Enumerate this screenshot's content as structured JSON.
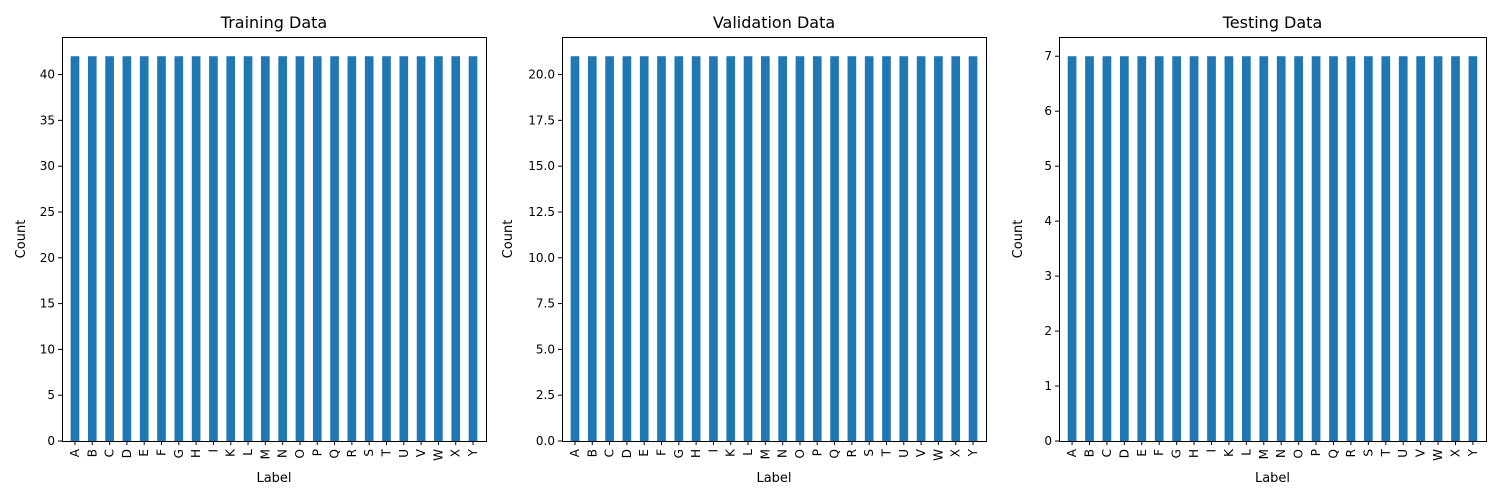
{
  "chart_data": [
    {
      "type": "bar",
      "title": "Training Data",
      "xlabel": "Label",
      "ylabel": "Count",
      "categories": [
        "A",
        "B",
        "C",
        "D",
        "E",
        "F",
        "G",
        "H",
        "I",
        "K",
        "L",
        "M",
        "N",
        "O",
        "P",
        "Q",
        "R",
        "S",
        "T",
        "U",
        "V",
        "W",
        "X",
        "Y"
      ],
      "values": [
        42,
        42,
        42,
        42,
        42,
        42,
        42,
        42,
        42,
        42,
        42,
        42,
        42,
        42,
        42,
        42,
        42,
        42,
        42,
        42,
        42,
        42,
        42,
        42
      ],
      "ylim": [
        0,
        44.1
      ],
      "yticks": [
        "0",
        "5",
        "10",
        "15",
        "20",
        "25",
        "30",
        "35",
        "40"
      ],
      "color": "#1f77b4",
      "grid": false,
      "legend": "none"
    },
    {
      "type": "bar",
      "title": "Validation Data",
      "xlabel": "Label",
      "ylabel": "Count",
      "categories": [
        "A",
        "B",
        "C",
        "D",
        "E",
        "F",
        "G",
        "H",
        "I",
        "K",
        "L",
        "M",
        "N",
        "O",
        "P",
        "Q",
        "R",
        "S",
        "T",
        "U",
        "V",
        "W",
        "X",
        "Y"
      ],
      "values": [
        21,
        21,
        21,
        21,
        21,
        21,
        21,
        21,
        21,
        21,
        21,
        21,
        21,
        21,
        21,
        21,
        21,
        21,
        21,
        21,
        21,
        21,
        21,
        21
      ],
      "ylim": [
        0,
        22.05
      ],
      "yticks": [
        "0.0",
        "2.5",
        "5.0",
        "7.5",
        "10.0",
        "12.5",
        "15.0",
        "17.5",
        "20.0"
      ],
      "color": "#1f77b4",
      "grid": false,
      "legend": "none"
    },
    {
      "type": "bar",
      "title": "Testing Data",
      "xlabel": "Label",
      "ylabel": "Count",
      "categories": [
        "A",
        "B",
        "C",
        "D",
        "E",
        "F",
        "G",
        "H",
        "I",
        "K",
        "L",
        "M",
        "N",
        "O",
        "P",
        "Q",
        "R",
        "S",
        "T",
        "U",
        "V",
        "W",
        "X",
        "Y"
      ],
      "values": [
        7,
        7,
        7,
        7,
        7,
        7,
        7,
        7,
        7,
        7,
        7,
        7,
        7,
        7,
        7,
        7,
        7,
        7,
        7,
        7,
        7,
        7,
        7,
        7
      ],
      "ylim": [
        0,
        7.35
      ],
      "yticks": [
        "0",
        "1",
        "2",
        "3",
        "4",
        "5",
        "6",
        "7"
      ],
      "color": "#1f77b4",
      "grid": false,
      "legend": "none"
    }
  ]
}
